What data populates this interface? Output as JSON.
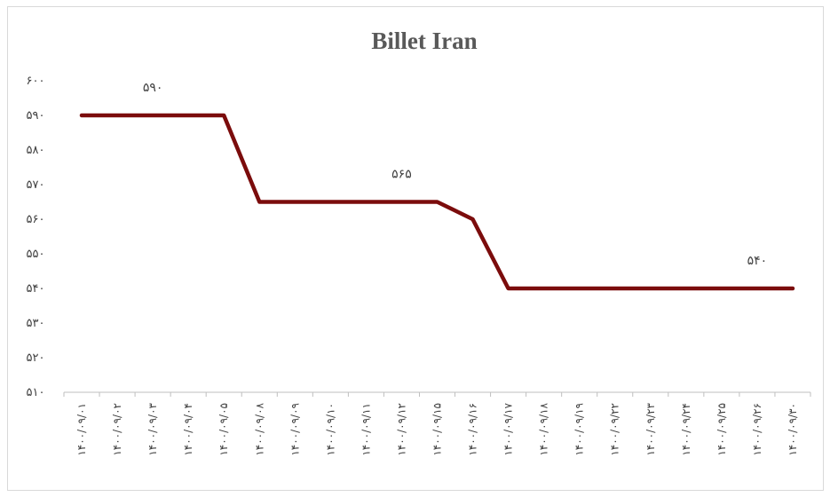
{
  "chart_data": {
    "type": "line",
    "title": "Billet Iran",
    "xlabel": "",
    "ylabel": "",
    "ylim": [
      510,
      600
    ],
    "y_ticks": [
      {
        "value": 510,
        "label": "۵۱۰"
      },
      {
        "value": 520,
        "label": "۵۲۰"
      },
      {
        "value": 530,
        "label": "۵۳۰"
      },
      {
        "value": 540,
        "label": "۵۴۰"
      },
      {
        "value": 550,
        "label": "۵۵۰"
      },
      {
        "value": 560,
        "label": "۵۶۰"
      },
      {
        "value": 570,
        "label": "۵۷۰"
      },
      {
        "value": 580,
        "label": "۵۸۰"
      },
      {
        "value": 590,
        "label": "۵۹۰"
      },
      {
        "value": 600,
        "label": "۶۰۰"
      }
    ],
    "categories": [
      "۱۴۰۰/۰۹/۰۱",
      "۱۴۰۰/۰۹/۰۲",
      "۱۴۰۰/۰۹/۰۳",
      "۱۴۰۰/۰۹/۰۴",
      "۱۴۰۰/۰۹/۰۵",
      "۱۴۰۰/۰۹/۰۸",
      "۱۴۰۰/۰۹/۰۹",
      "۱۴۰۰/۰۹/۱۰",
      "۱۴۰۰/۰۹/۱۱",
      "۱۴۰۰/۰۹/۱۲",
      "۱۴۰۰/۰۹/۱۵",
      "۱۴۰۰/۰۹/۱۶",
      "۱۴۰۰/۰۹/۱۷",
      "۱۴۰۰/۰۹/۱۸",
      "۱۴۰۰/۰۹/۱۹",
      "۱۴۰۰/۰۹/۲۲",
      "۱۴۰۰/۰۹/۲۳",
      "۱۴۰۰/۰۹/۲۴",
      "۱۴۰۰/۰۹/۲۵",
      "۱۴۰۰/۰۹/۲۶",
      "۱۴۰۰/۰۹/۳۰"
    ],
    "series": [
      {
        "values": [
          590,
          590,
          590,
          590,
          590,
          565,
          565,
          565,
          565,
          565,
          565,
          560,
          540,
          540,
          540,
          540,
          540,
          540,
          540,
          540,
          540
        ],
        "color": "#7b0c0c"
      }
    ],
    "data_labels": [
      {
        "index": 2,
        "value": 590,
        "text": "۵۹۰"
      },
      {
        "index": 9,
        "value": 565,
        "text": "۵۶۵"
      },
      {
        "index": 19,
        "value": 540,
        "text": "۵۴۰"
      }
    ],
    "grid": false,
    "legend": "none"
  }
}
